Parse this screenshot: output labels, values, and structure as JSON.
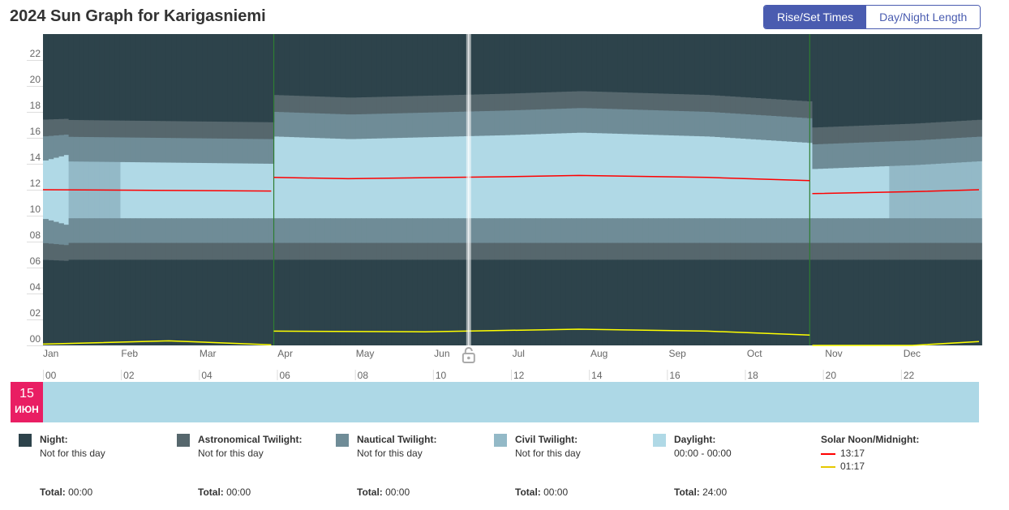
{
  "header": {
    "title": "2024 Sun Graph for Karigasniemi",
    "toggle_active": "Rise/Set Times",
    "toggle_inactive": "Day/Night Length"
  },
  "colors": {
    "night": "#2d434b",
    "astronomical": "#56676d",
    "nautical": "#6f8c97",
    "civil": "#93b9c7",
    "daylight": "#b0d9e6",
    "noon_line": "#ff0000",
    "midnight_line": "#ffff00",
    "dst_line": "#2e7d32",
    "accent": "#4a5cb0",
    "day_badge": "#e91e63"
  },
  "chart_data": {
    "type": "heatmap",
    "x_axis": {
      "labels": [
        "Jan",
        "Feb",
        "Mar",
        "Apr",
        "May",
        "Jun",
        "Jul",
        "Aug",
        "Sep",
        "Oct",
        "Nov",
        "Dec"
      ],
      "day_range": [
        1,
        366
      ]
    },
    "y_axis": {
      "labels": [
        "00",
        "02",
        "04",
        "06",
        "08",
        "10",
        "12",
        "14",
        "16",
        "18",
        "20",
        "22"
      ],
      "range_hours": [
        0,
        24
      ]
    },
    "bands": [
      {
        "name": "Night",
        "color": "#2d434b"
      },
      {
        "name": "Astronomical Twilight",
        "color": "#56676d"
      },
      {
        "name": "Nautical Twilight",
        "color": "#6f8c97"
      },
      {
        "name": "Civil Twilight",
        "color": "#93b9c7"
      },
      {
        "name": "Daylight",
        "color": "#b0d9e6"
      }
    ],
    "sunrise_hours": [
      {
        "day": null,
        "astro": 6.6,
        "naut": 7.9,
        "civil": 9.8
      },
      {
        "day": 10.9,
        "astro": 6.5,
        "naut": 7.7,
        "civil": 9.2
      },
      {
        "day": 9.5,
        "astro": 6.1,
        "naut": 7.3,
        "civil": 8.5
      },
      {
        "day": 8.5,
        "astro": 5.6,
        "naut": 6.6,
        "civil": 7.6
      },
      {
        "day": 7.5,
        "astro": 4.8,
        "naut": 5.8,
        "civil": 6.7
      },
      {
        "day": 6.2,
        "astro": 3.2,
        "naut": 4.4,
        "civil": 5.6
      },
      {
        "day": 7.2,
        "astro": 4.5,
        "naut": 5.5,
        "civil": 6.6
      },
      {
        "day": 6.2,
        "astro": 2.8,
        "naut": 4.5,
        "civil": 5.6
      },
      {
        "day": 5.0,
        "astro": null,
        "naut": 1.5,
        "civil": 3.6
      },
      {
        "day": 3.8,
        "astro": null,
        "naut": null,
        "civil": 0.5
      },
      {
        "day": null,
        "astro": null,
        "naut": null,
        "civil": null
      },
      {
        "day": null,
        "astro": null,
        "naut": null,
        "civil": null
      },
      {
        "day": 3.0,
        "astro": null,
        "naut": null,
        "civil": 0.8
      },
      {
        "day": 4.5,
        "astro": null,
        "naut": 1.2,
        "civil": 3.3
      },
      {
        "day": 5.6,
        "astro": 1.8,
        "naut": 3.5,
        "civil": 4.7
      },
      {
        "day": 6.6,
        "astro": 3.8,
        "naut": 4.9,
        "civil": 5.9
      },
      {
        "day": 7.6,
        "astro": 4.9,
        "naut": 5.9,
        "civil": 6.9
      },
      {
        "day": 8.6,
        "astro": 5.7,
        "naut": 6.7,
        "civil": 7.8
      },
      {
        "day": 7.6,
        "astro": 4.7,
        "naut": 5.7,
        "civil": 6.8
      },
      {
        "day": 9.0,
        "astro": 5.4,
        "naut": 6.6,
        "civil": 7.8
      },
      {
        "day": null,
        "astro": 5.9,
        "naut": 7.1,
        "civil": 8.6
      },
      {
        "day": null,
        "astro": 6.6,
        "naut": 7.9,
        "civil": 9.8
      }
    ],
    "solar_noon": [
      {
        "day": 1,
        "hour": 12.0
      },
      {
        "day": 90,
        "hour": 11.9
      },
      {
        "day": 91,
        "hour": 12.95
      },
      {
        "day": 120,
        "hour": 12.85
      },
      {
        "day": 180,
        "hour": 13.0
      },
      {
        "day": 210,
        "hour": 13.1
      },
      {
        "day": 260,
        "hour": 12.95
      },
      {
        "day": 300,
        "hour": 12.7
      },
      {
        "day": 301,
        "hour": 11.7
      },
      {
        "day": 340,
        "hour": 11.85
      },
      {
        "day": 366,
        "hour": 12.0
      }
    ],
    "solar_midnight": [
      {
        "day": 1,
        "hour": 0.1
      },
      {
        "day": 50,
        "hour": 0.35
      },
      {
        "day": 90,
        "hour": 0.05
      },
      {
        "day": 91,
        "hour": 1.1
      },
      {
        "day": 150,
        "hour": 1.05
      },
      {
        "day": 210,
        "hour": 1.25
      },
      {
        "day": 260,
        "hour": 1.1
      },
      {
        "day": 300,
        "hour": 0.8
      },
      {
        "day": 301,
        "hour": -0.2
      },
      {
        "day": 340,
        "hour": -0.2
      },
      {
        "day": 366,
        "hour": 0.3
      }
    ],
    "dst_days": [
      91,
      300
    ],
    "selected_day": 167
  },
  "day_strip": {
    "hour_labels": [
      "00",
      "02",
      "04",
      "06",
      "08",
      "10",
      "12",
      "14",
      "16",
      "18",
      "20",
      "22"
    ],
    "day_number": "15",
    "month_abbr": "ИЮН"
  },
  "legend": [
    {
      "name": "Night:",
      "detail": "Not for this day",
      "total_label": "Total:",
      "total": "00:00",
      "color": "#2d434b"
    },
    {
      "name": "Astronomical Twilight:",
      "detail": "Not for this day",
      "total_label": "Total:",
      "total": "00:00",
      "color": "#56676d"
    },
    {
      "name": "Nautical Twilight:",
      "detail": "Not for this day",
      "total_label": "Total:",
      "total": "00:00",
      "color": "#6f8c97"
    },
    {
      "name": "Civil Twilight:",
      "detail": "Not for this day",
      "total_label": "Total:",
      "total": "00:00",
      "color": "#93b9c7"
    },
    {
      "name": "Daylight:",
      "detail": "00:00 - 00:00",
      "total_label": "Total:",
      "total": "24:00",
      "color": "#b0d9e6"
    }
  ],
  "solar_noon_legend": {
    "title": "Solar Noon/Midnight:",
    "noon": "13:17",
    "midnight": "01:17"
  }
}
